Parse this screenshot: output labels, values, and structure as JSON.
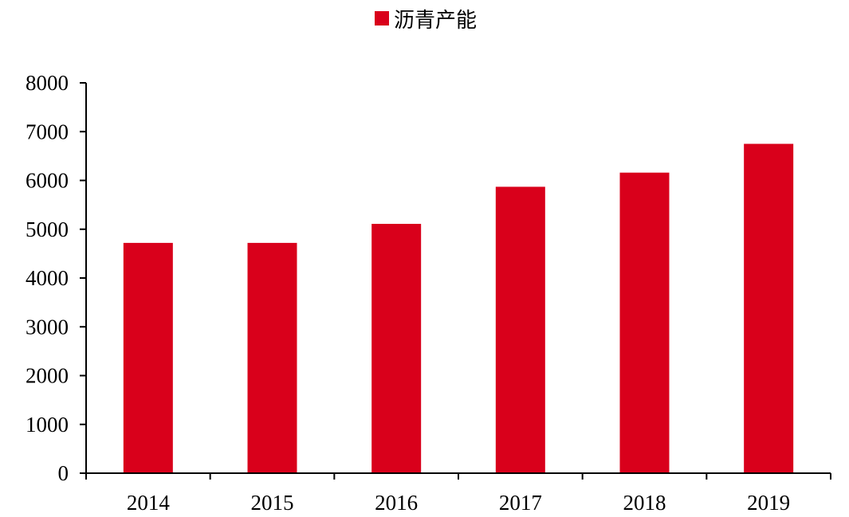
{
  "chart_data": {
    "type": "bar",
    "title": "",
    "xlabel": "",
    "ylabel": "",
    "categories": [
      "2014",
      "2015",
      "2016",
      "2017",
      "2018",
      "2019"
    ],
    "series": [
      {
        "name": "沥青产能",
        "values": [
          4720,
          4720,
          5110,
          5870,
          6160,
          6750
        ]
      }
    ],
    "ylim": [
      0,
      8000
    ],
    "yticks": [
      "0",
      "1000",
      "2000",
      "3000",
      "4000",
      "5000",
      "6000",
      "7000",
      "8000"
    ],
    "grid": false,
    "legend": "top-center",
    "colors": {
      "bar": "#d9001b",
      "axis": "#000000"
    }
  }
}
